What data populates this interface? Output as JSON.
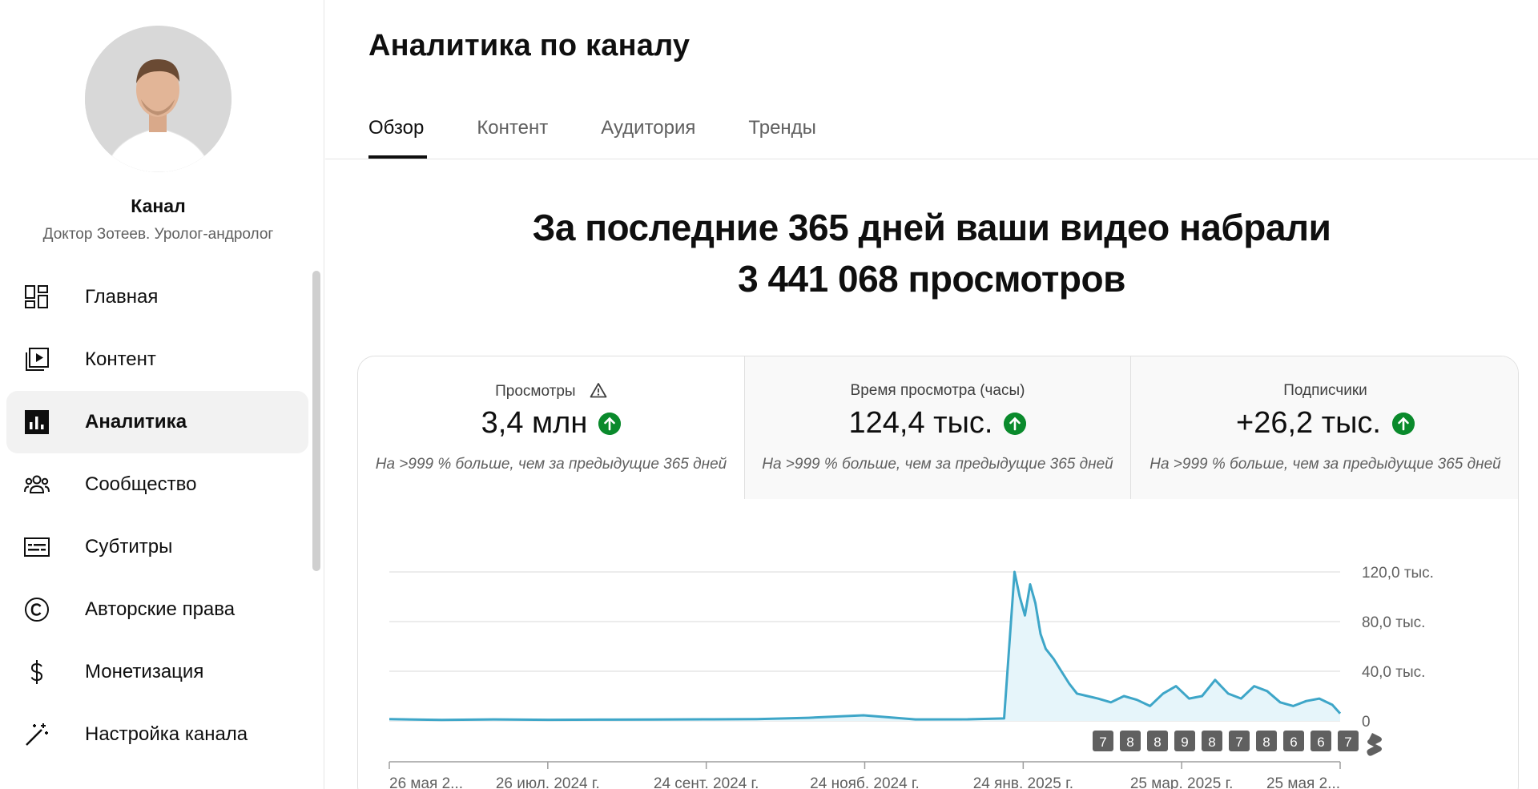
{
  "sidebar": {
    "channel_label": "Канал",
    "channel_name": "Доктор Зотеев. Уролог-андролог",
    "items": [
      {
        "label": "Главная",
        "icon": "dashboard-icon"
      },
      {
        "label": "Контент",
        "icon": "video-library-icon"
      },
      {
        "label": "Аналитика",
        "icon": "analytics-icon",
        "active": true
      },
      {
        "label": "Сообщество",
        "icon": "community-icon"
      },
      {
        "label": "Субтитры",
        "icon": "subtitles-icon"
      },
      {
        "label": "Авторские права",
        "icon": "copyright-icon"
      },
      {
        "label": "Монетизация",
        "icon": "dollar-icon"
      },
      {
        "label": "Настройка канала",
        "icon": "magic-wand-icon"
      }
    ]
  },
  "main": {
    "title": "Аналитика по каналу",
    "tabs": [
      {
        "label": "Обзор",
        "active": true
      },
      {
        "label": "Контент"
      },
      {
        "label": "Аудитория"
      },
      {
        "label": "Тренды"
      }
    ],
    "headline_line1": "За последние 365 дней ваши видео набрали",
    "headline_line2": "3 441 068 просмотров",
    "metrics": [
      {
        "label": "Просмотры",
        "value": "3,4 млн",
        "note": "На >999 % больше, чем за предыдущие 365 дней",
        "warning": true
      },
      {
        "label": "Время просмотра (часы)",
        "value": "124,4 тыс.",
        "note": "На >999 % больше, чем за предыдущие 365 дней"
      },
      {
        "label": "Подписчики",
        "value": "+26,2 тыс.",
        "note": "На >999 % больше, чем за предыдущие 365 дней"
      }
    ]
  },
  "chart_data": {
    "type": "area",
    "series_color": "#3ea6c8",
    "fill_color": "#e6f5fa",
    "ylim": [
      0,
      120000
    ],
    "y_ticks": [
      {
        "value": 0,
        "label": "0"
      },
      {
        "value": 40000,
        "label": "40,0 тыс."
      },
      {
        "value": 80000,
        "label": "80,0 тыс."
      },
      {
        "value": 120000,
        "label": "120,0 тыс."
      }
    ],
    "x_tick_labels": [
      "26 мая 2...",
      "26 июл. 2024 г.",
      "24 сент. 2024 г.",
      "24 нояб. 2024 г.",
      "24 янв. 2025 г.",
      "25 мар. 2025 г.",
      "25 мая 2..."
    ],
    "video_markers": [
      "7",
      "8",
      "8",
      "9",
      "8",
      "7",
      "8",
      "6",
      "6",
      "7"
    ],
    "x": [
      "2024-05-26",
      "2024-06-15",
      "2024-07-05",
      "2024-07-26",
      "2024-08-15",
      "2024-09-04",
      "2024-09-24",
      "2024-10-14",
      "2024-11-03",
      "2024-11-24",
      "2024-12-14",
      "2025-01-03",
      "2025-01-17",
      "2025-01-21",
      "2025-01-23",
      "2025-01-25",
      "2025-01-27",
      "2025-01-29",
      "2025-01-31",
      "2025-02-02",
      "2025-02-05",
      "2025-02-08",
      "2025-02-11",
      "2025-02-14",
      "2025-02-18",
      "2025-02-22",
      "2025-02-27",
      "2025-03-04",
      "2025-03-09",
      "2025-03-14",
      "2025-03-19",
      "2025-03-24",
      "2025-03-29",
      "2025-04-03",
      "2025-04-08",
      "2025-04-13",
      "2025-04-18",
      "2025-04-23",
      "2025-04-28",
      "2025-05-03",
      "2025-05-08",
      "2025-05-13",
      "2025-05-18",
      "2025-05-23",
      "2025-05-26"
    ],
    "values": [
      1500,
      800,
      1200,
      900,
      1000,
      1100,
      1300,
      1500,
      2500,
      4500,
      1200,
      1300,
      2000,
      120000,
      100000,
      85000,
      110000,
      95000,
      70000,
      58000,
      50000,
      40000,
      30000,
      22000,
      20000,
      18000,
      15000,
      20000,
      17000,
      12000,
      22000,
      28000,
      18000,
      20000,
      33000,
      22000,
      18000,
      28000,
      24000,
      15000,
      12000,
      16000,
      18000,
      13000,
      6000
    ]
  }
}
